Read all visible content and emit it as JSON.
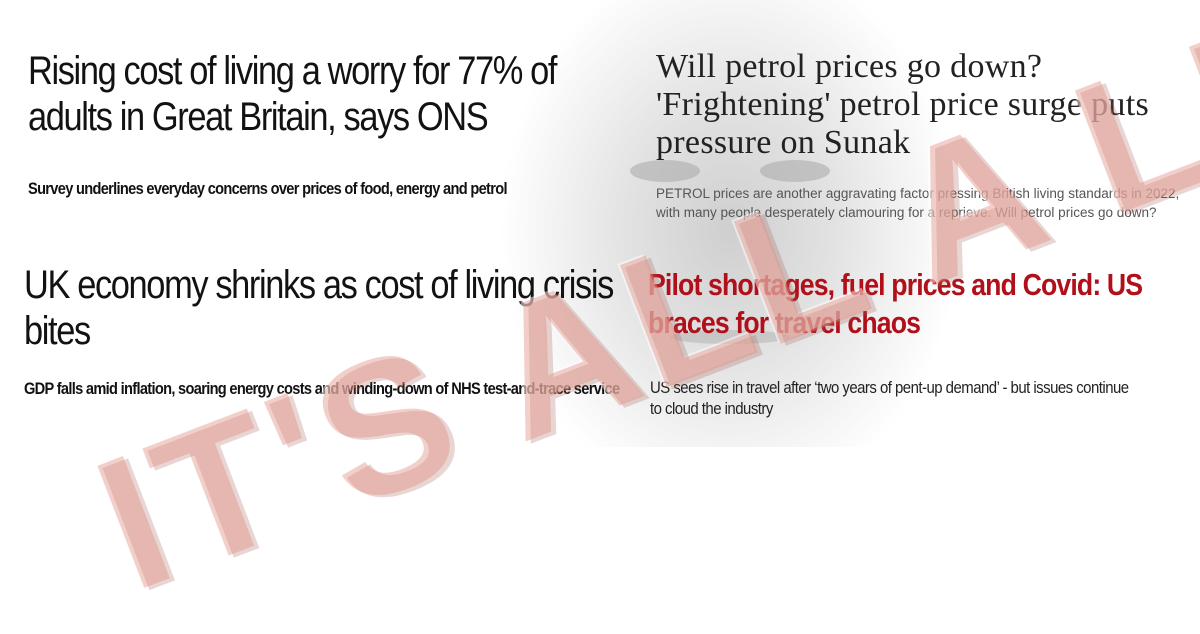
{
  "articles": [
    {
      "headline": "Rising cost of living a worry for 77% of adults in Great Britain, says ONS",
      "standfirst": "Survey underlines everyday concerns over prices of food, energy and petrol"
    },
    {
      "headline": "Will petrol prices go down? 'Frightening' petrol price surge puts pressure on Sunak",
      "standfirst": "PETROL prices are another aggravating factor pressing British living standards in 2022, with many people desperately clamouring for a reprieve. Will petrol prices go down?"
    },
    {
      "headline": "UK economy shrinks as cost of living crisis bites",
      "standfirst": "GDP falls amid inflation, soaring energy costs and winding-down of NHS test-and-trace service"
    },
    {
      "headline": "Pilot shortages, fuel prices and Covid: US braces for travel chaos",
      "standfirst": "US sees rise in travel after ‘two years of pent-up demand’ - but issues continue to cloud the industry"
    }
  ],
  "overlay": {
    "text": "IT'S ALL A LIE"
  },
  "colors": {
    "red_headline": "#b1101b",
    "watermark": "#e28c80"
  }
}
